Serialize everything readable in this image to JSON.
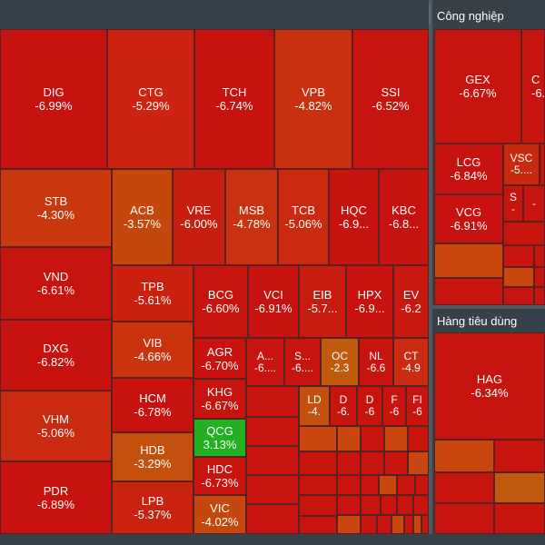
{
  "groups": {
    "cong_nghiep": {
      "title": "Công nghiệp"
    },
    "hang_tieu_dung": {
      "title": "Hàng tiêu dùng"
    }
  },
  "colors": {
    "deep_red": "#c8120f",
    "red": "#cc1a12",
    "red_orange": "#c82a10",
    "orange": "#c9470e",
    "dark_orange": "#c05a0e",
    "green": "#22b022",
    "background": "#37414a"
  },
  "tiles": {
    "dig": {
      "sym": "DIG",
      "chg": "-6.99%"
    },
    "ctg": {
      "sym": "CTG",
      "chg": "-5.29%"
    },
    "tch": {
      "sym": "TCH",
      "chg": "-6.74%"
    },
    "vpb": {
      "sym": "VPB",
      "chg": "-4.82%"
    },
    "ssi": {
      "sym": "SSI",
      "chg": "-6.52%"
    },
    "stb": {
      "sym": "STB",
      "chg": "-4.30%"
    },
    "acb": {
      "sym": "ACB",
      "chg": "-3.57%"
    },
    "vre": {
      "sym": "VRE",
      "chg": "-6.00%"
    },
    "msb": {
      "sym": "MSB",
      "chg": "-4.78%"
    },
    "tcb": {
      "sym": "TCB",
      "chg": "-5.06%"
    },
    "hqc": {
      "sym": "HQC",
      "chg": "-6.9..."
    },
    "kbc": {
      "sym": "KBC",
      "chg": "-6.8..."
    },
    "vnd": {
      "sym": "VND",
      "chg": "-6.61%"
    },
    "tpb": {
      "sym": "TPB",
      "chg": "-5.61%"
    },
    "bcg": {
      "sym": "BCG",
      "chg": "-6.60%"
    },
    "vci": {
      "sym": "VCI",
      "chg": "-6.91%"
    },
    "eib": {
      "sym": "EIB",
      "chg": "-5.7..."
    },
    "hpx": {
      "sym": "HPX",
      "chg": "-6.9..."
    },
    "ev": {
      "sym": "EV",
      "chg": "-6.2"
    },
    "dxg": {
      "sym": "DXG",
      "chg": "-6.82%"
    },
    "vib": {
      "sym": "VIB",
      "chg": "-4.66%"
    },
    "agr": {
      "sym": "AGR",
      "chg": "-6.70%"
    },
    "a_": {
      "sym": "A...",
      "chg": "-6...."
    },
    "s_": {
      "sym": "S...",
      "chg": "-6...."
    },
    "oc": {
      "sym": "OC",
      "chg": "-2.3"
    },
    "nl": {
      "sym": "NL",
      "chg": "-6.6"
    },
    "ct": {
      "sym": "CT",
      "chg": "-4.9"
    },
    "vhm": {
      "sym": "VHM",
      "chg": "-5.06%"
    },
    "hcm": {
      "sym": "HCM",
      "chg": "-6.78%"
    },
    "khg": {
      "sym": "KHG",
      "chg": "-6.67%"
    },
    "ld": {
      "sym": "LD",
      "chg": "-4."
    },
    "d1": {
      "sym": "D",
      "chg": "-6."
    },
    "d2": {
      "sym": "D",
      "chg": "-6"
    },
    "f": {
      "sym": "F",
      "chg": "-6"
    },
    "fi": {
      "sym": "FI",
      "chg": "-6"
    },
    "qcg": {
      "sym": "QCG",
      "chg": "3.13%"
    },
    "hdb": {
      "sym": "HDB",
      "chg": "-3.29%"
    },
    "hdc": {
      "sym": "HDC",
      "chg": "-6.73%"
    },
    "pdr": {
      "sym": "PDR",
      "chg": "-6.89%"
    },
    "lpb": {
      "sym": "LPB",
      "chg": "-5.37%"
    },
    "vic": {
      "sym": "VIC",
      "chg": "-4.02%"
    },
    "gex": {
      "sym": "GEX",
      "chg": "-6.67%"
    },
    "c_": {
      "sym": "C",
      "chg": "-6."
    },
    "lcg": {
      "sym": "LCG",
      "chg": "-6.84%"
    },
    "vsc": {
      "sym": "VSC",
      "chg": "-5...."
    },
    "vcg": {
      "sym": "VCG",
      "chg": "-6.91%"
    },
    "s2": {
      "sym": "S",
      "chg": "-"
    },
    "blank1": {
      "sym": "",
      "chg": "-"
    },
    "hag": {
      "sym": "HAG",
      "chg": "-6.34%"
    }
  }
}
